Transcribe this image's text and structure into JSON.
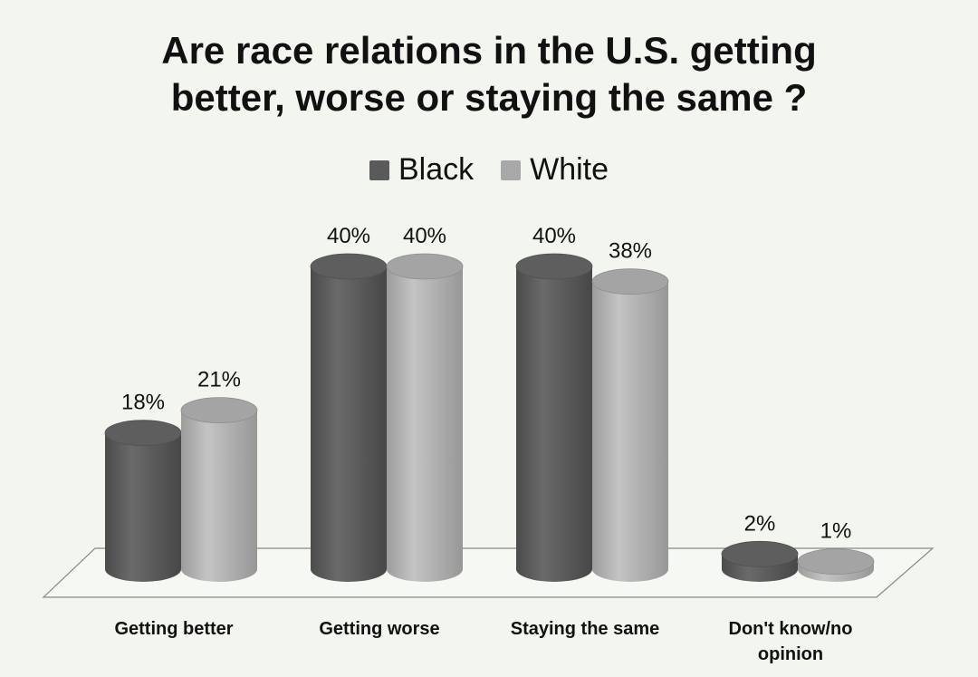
{
  "chart_data": {
    "type": "bar",
    "title": [
      "Are race relations in the U.S. getting",
      "better, worse or staying the same ?"
    ],
    "categories": [
      "Getting better",
      "Getting worse",
      "Staying the same",
      "Don't know/no opinion"
    ],
    "series": [
      {
        "name": "Black",
        "values": [
          18,
          40,
          40,
          2
        ],
        "labels": [
          "18%",
          "40%",
          "40%",
          "2%"
        ],
        "color": "#5a5a5a"
      },
      {
        "name": "White",
        "values": [
          21,
          40,
          38,
          1
        ],
        "labels": [
          "21%",
          "40%",
          "38%",
          "1%"
        ],
        "color": "#a8a8a8"
      }
    ],
    "unit": "%",
    "legend_position": "top",
    "grid": false
  }
}
